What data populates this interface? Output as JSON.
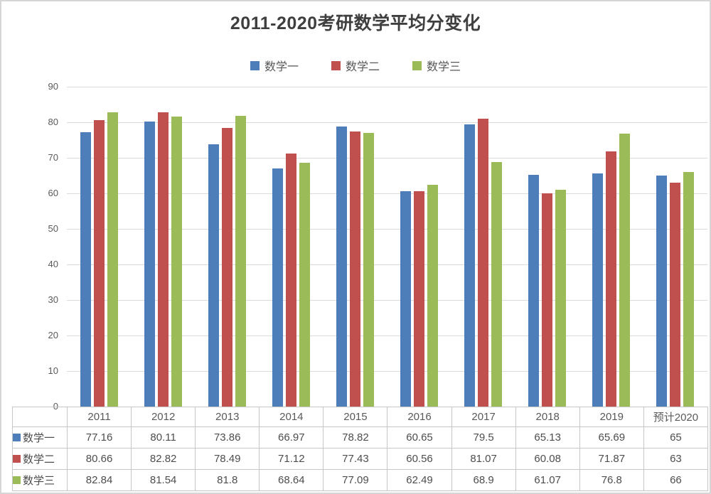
{
  "title": "2011-2020考研数学平均分变化",
  "chart_data": {
    "type": "bar",
    "title": "2011-2020考研数学平均分变化",
    "categories": [
      "2011",
      "2012",
      "2013",
      "2014",
      "2015",
      "2016",
      "2017",
      "2018",
      "2019",
      "预计2020"
    ],
    "series": [
      {
        "name": "数学一",
        "color": "#4D7EBA",
        "values": [
          77.16,
          80.11,
          73.86,
          66.97,
          78.82,
          60.65,
          79.5,
          65.13,
          65.69,
          65
        ]
      },
      {
        "name": "数学二",
        "color": "#C0504D",
        "values": [
          80.66,
          82.82,
          78.49,
          71.12,
          77.43,
          60.56,
          81.07,
          60.08,
          71.87,
          63
        ]
      },
      {
        "name": "数学三",
        "color": "#9BBB59",
        "values": [
          82.84,
          81.54,
          81.8,
          68.64,
          77.09,
          62.49,
          68.9,
          61.07,
          76.8,
          66
        ]
      }
    ],
    "xlabel": "",
    "ylabel": "",
    "ylim": [
      0,
      90
    ],
    "yticks": [
      0,
      10,
      20,
      30,
      40,
      50,
      60,
      70,
      80,
      90
    ],
    "grid": true,
    "legend_position": "top",
    "data_table_shown": true
  }
}
